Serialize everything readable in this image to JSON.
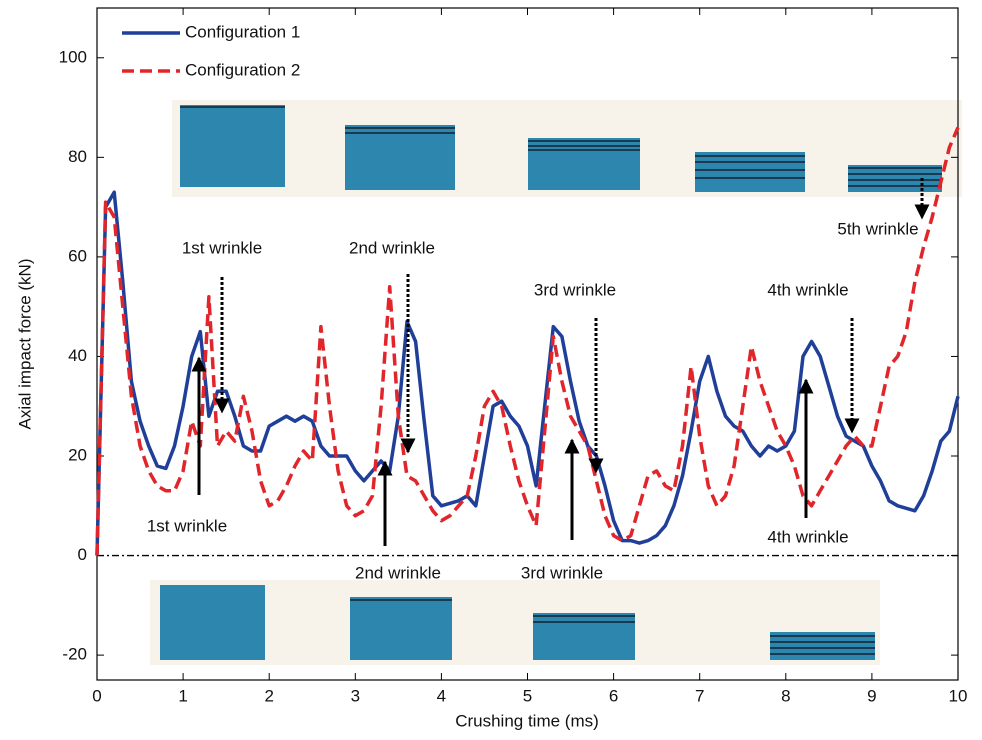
{
  "chart_data": {
    "type": "line",
    "xlabel": "Crushing time (ms)",
    "ylabel": "Axial impact force (kN)",
    "xlim": [
      0,
      10
    ],
    "ylim": [
      -25,
      110
    ],
    "xticks": [
      0,
      1,
      2,
      3,
      4,
      5,
      6,
      7,
      8,
      9,
      10
    ],
    "yticks": [
      -20,
      0,
      20,
      40,
      60,
      80,
      100
    ],
    "legend": "upper left",
    "x": [
      0,
      0.1,
      0.2,
      0.3,
      0.4,
      0.5,
      0.6,
      0.7,
      0.8,
      0.9,
      1,
      1.1,
      1.2,
      1.3,
      1.4,
      1.5,
      1.6,
      1.7,
      1.8,
      1.9,
      2,
      2.1,
      2.2,
      2.3,
      2.4,
      2.5,
      2.6,
      2.7,
      2.8,
      2.9,
      3,
      3.1,
      3.2,
      3.3,
      3.4,
      3.5,
      3.6,
      3.7,
      3.8,
      3.9,
      4,
      4.1,
      4.2,
      4.3,
      4.4,
      4.5,
      4.6,
      4.7,
      4.8,
      4.9,
      5,
      5.1,
      5.2,
      5.3,
      5.4,
      5.5,
      5.6,
      5.7,
      5.8,
      5.9,
      6,
      6.1,
      6.2,
      6.3,
      6.4,
      6.5,
      6.6,
      6.7,
      6.8,
      6.9,
      7,
      7.1,
      7.2,
      7.3,
      7.4,
      7.5,
      7.6,
      7.7,
      7.8,
      7.9,
      8,
      8.1,
      8.2,
      8.3,
      8.4,
      8.5,
      8.6,
      8.7,
      8.8,
      8.9,
      9,
      9.1,
      9.2,
      9.3,
      9.4,
      9.5,
      9.6,
      9.7,
      9.8,
      9.9,
      10
    ],
    "series": [
      {
        "name": "Configuration 1",
        "color": "#1f3f99",
        "dash": "solid",
        "values": [
          0,
          70,
          73,
          55,
          35,
          27,
          22,
          18,
          17.5,
          22,
          30,
          40,
          45,
          28,
          33,
          33,
          28,
          22,
          21,
          21,
          26,
          27,
          28,
          27,
          28,
          27,
          22,
          20,
          20,
          20,
          17,
          15,
          17,
          19,
          17,
          28,
          47,
          43,
          27,
          12,
          10,
          10.5,
          11,
          12,
          10,
          20,
          30,
          31,
          28,
          26,
          22,
          14,
          30,
          46,
          44,
          35,
          27,
          22,
          20,
          14,
          7,
          3,
          3,
          2.5,
          3,
          4,
          6,
          10,
          16,
          25,
          35,
          40,
          33,
          28,
          26,
          25,
          22,
          20,
          22,
          21,
          22,
          25,
          40,
          43,
          40,
          34,
          28,
          24,
          23,
          22,
          18,
          15,
          11,
          10,
          9.5,
          9,
          12,
          17,
          23,
          25,
          32
        ]
      },
      {
        "name": "Configuration 2",
        "color": "#e0262b",
        "dash": "dashed",
        "values": [
          0,
          71,
          68,
          50,
          32,
          22,
          17,
          14,
          13,
          13,
          17,
          27,
          22,
          52,
          22,
          25,
          23,
          32,
          25,
          15,
          10,
          11,
          14,
          18,
          21,
          19,
          46,
          30,
          17,
          10,
          8,
          9,
          12,
          30,
          54,
          28,
          16,
          15,
          12,
          9,
          7,
          8,
          10,
          12,
          20,
          30,
          33,
          30,
          22,
          15,
          10,
          6,
          25,
          44,
          35,
          28,
          25,
          22,
          15,
          8,
          4,
          3,
          4,
          10,
          16,
          17,
          14,
          13,
          22,
          38,
          24,
          14,
          10,
          12,
          18,
          30,
          42,
          35,
          30,
          25,
          22,
          18,
          12,
          10,
          13,
          16,
          19,
          22,
          24,
          22,
          22,
          30,
          38,
          40,
          45,
          55,
          62,
          68,
          75,
          82,
          86
        ]
      }
    ],
    "annotations": [
      "1st wrinkle",
      "2nd wrinkle",
      "3rd wrinkle",
      "4th wrinkle",
      "5th wrinkle",
      "1st wrinkle",
      "2nd wrinkle",
      "3rd wrinkle",
      "4th wrinkle"
    ]
  }
}
